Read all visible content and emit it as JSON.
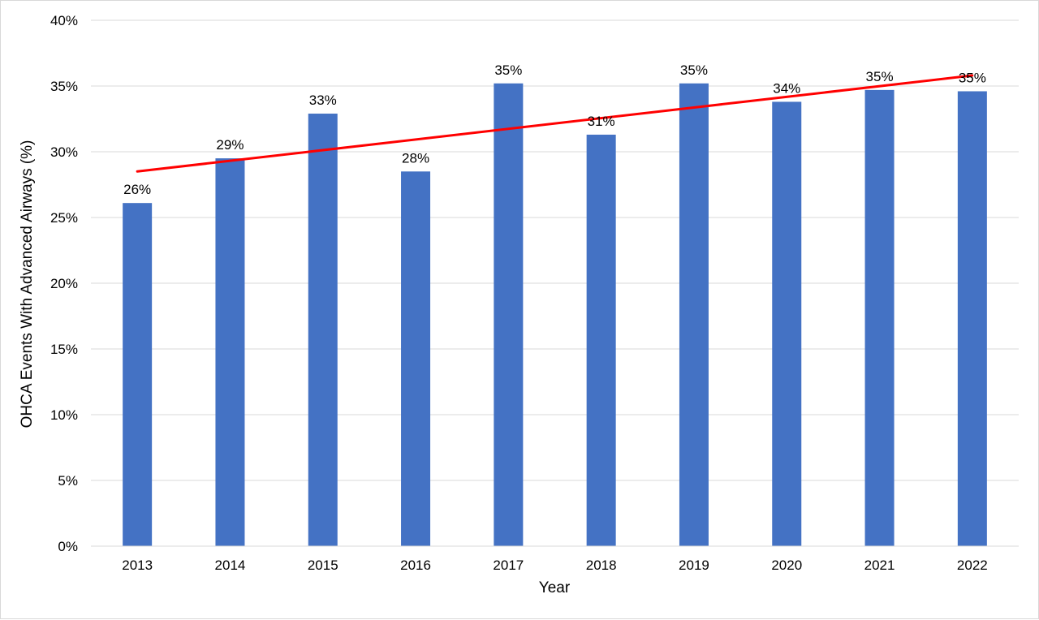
{
  "chart_data": {
    "type": "bar",
    "title": "",
    "xlabel": "Year",
    "ylabel": "OHCA Events With Advanced Airways (%)",
    "categories": [
      "2013",
      "2014",
      "2015",
      "2016",
      "2017",
      "2018",
      "2019",
      "2020",
      "2021",
      "2022"
    ],
    "series": [
      {
        "values": [
          26.1,
          29.5,
          32.9,
          28.5,
          35.2,
          31.3,
          35.2,
          33.8,
          34.7,
          34.6
        ],
        "data_labels": [
          "26%",
          "29%",
          "33%",
          "28%",
          "35%",
          "31%",
          "35%",
          "34%",
          "35%",
          "35%"
        ],
        "color": "#4472C4"
      }
    ],
    "trendline": {
      "type": "linear",
      "color": "#FF0000",
      "start_value": 28.5,
      "end_value": 35.8
    },
    "ylim": [
      0,
      40
    ],
    "y_ticks": [
      0,
      5,
      10,
      15,
      20,
      25,
      30,
      35,
      40
    ],
    "y_tick_labels": [
      "0%",
      "5%",
      "10%",
      "15%",
      "20%",
      "25%",
      "30%",
      "35%",
      "40%"
    ],
    "grid": "horizontal",
    "legend": "none"
  }
}
